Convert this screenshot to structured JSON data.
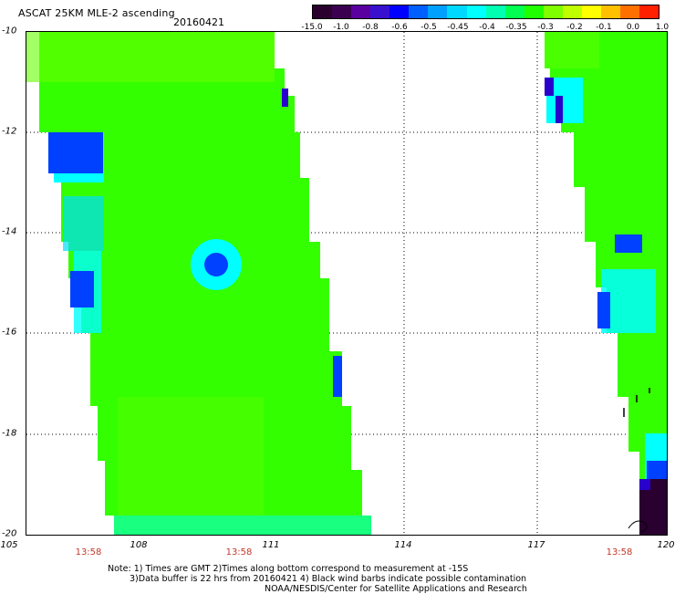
{
  "header": {
    "title": "ASCAT 25KM MLE-2 ascending",
    "date": "20160421"
  },
  "colorbar": {
    "ticks": [
      "-15.0",
      "-1.0",
      "-0.8",
      "-0.6",
      "-0.5",
      "-0.45",
      "-0.4",
      "-0.35",
      "-0.3",
      "-0.2",
      "-0.1",
      "0.0",
      "1.0"
    ],
    "colors": [
      "#2a002e",
      "#3b0050",
      "#5a00a0",
      "#3a10d0",
      "#0000ff",
      "#0060ff",
      "#00a0ff",
      "#00d8ff",
      "#00ffff",
      "#00ffb0",
      "#00ff50",
      "#20ff00",
      "#80ff00",
      "#c0ff00",
      "#ffff00",
      "#ffc000",
      "#ff7000",
      "#ff2000"
    ]
  },
  "map": {
    "lat_labels": [
      "-10",
      "-12",
      "-14",
      "-16",
      "-18",
      "-20"
    ],
    "lon_labels": [
      "105",
      "108",
      "111",
      "114",
      "117",
      "120"
    ],
    "time_labels": [
      "13:58",
      "13:58",
      "13:58"
    ],
    "colors": {
      "green": "#33ff00",
      "lime": "#66ff00",
      "cyan": "#00ffff",
      "aqua": "#00ddff",
      "blue": "#0040ff",
      "deep_blue": "#2a00cc",
      "dark": "#2a0030"
    }
  },
  "footer": {
    "note_line1": "Note: 1) Times are GMT 2)Times along bottom correspond to measurement at -15S",
    "note_line2": "3)Data buffer is 22 hrs from 20160421 4) Black wind barbs indicate possible contamination",
    "credit": "NOAA/NESDIS/Center for Satellite Applications and Research"
  }
}
